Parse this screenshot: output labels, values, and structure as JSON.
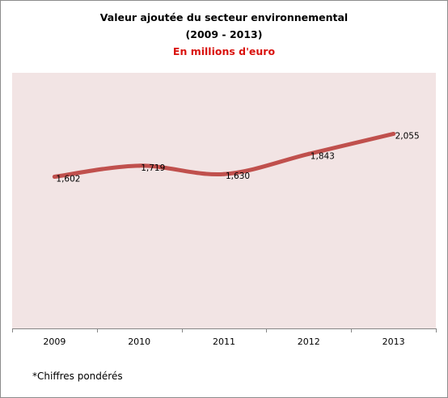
{
  "chart_data": {
    "type": "line",
    "title": "Valeur ajoutée du secteur environnemental",
    "period": "(2009 - 2013)",
    "subtitle": "En millions d'euro",
    "categories": [
      "2009",
      "2010",
      "2011",
      "2012",
      "2013"
    ],
    "series": [
      {
        "values": [
          1602,
          1719,
          1630,
          1843,
          2055
        ],
        "labels": [
          "1,602",
          "1,719",
          "1,630",
          "1,843",
          "2,055"
        ]
      }
    ],
    "ylim": [
      0,
      2700
    ],
    "grid": false,
    "legend": "none",
    "plot_background": "#f2e4e4",
    "line_color": "#c0504d",
    "footnote": "*Chiffres pondérés"
  }
}
